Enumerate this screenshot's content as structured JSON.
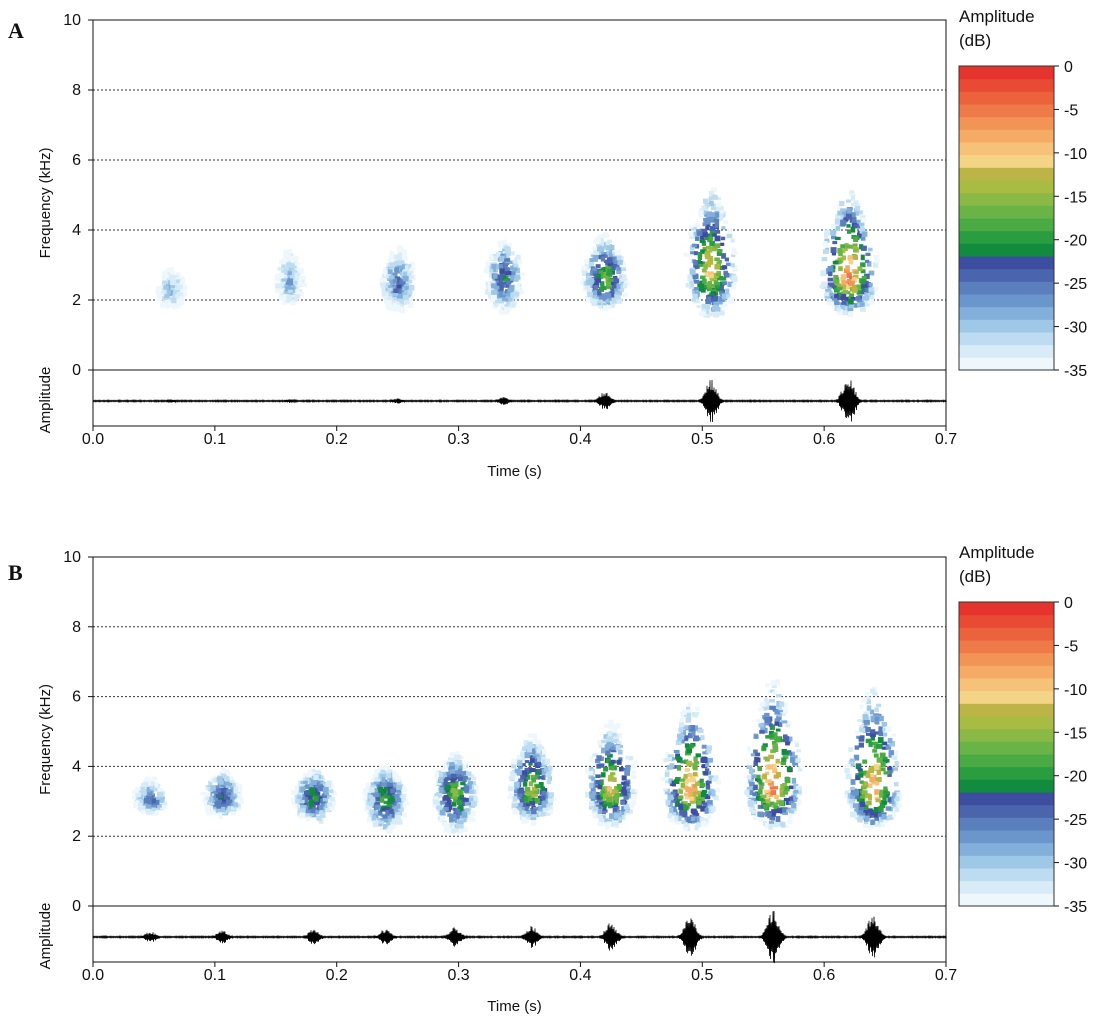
{
  "chart_data": [
    {
      "panel": "A",
      "type": "heatmap",
      "xlabel": "Time (s)",
      "ylabel": "Frequency (kHz)",
      "ylabel_wave": "Amplitude",
      "xlim": [
        0,
        0.7
      ],
      "ylim": [
        0,
        10
      ],
      "x_ticks": [
        "0.0",
        "0.1",
        "0.2",
        "0.3",
        "0.4",
        "0.5",
        "0.6",
        "0.7"
      ],
      "y_ticks": [
        "0",
        "2",
        "4",
        "6",
        "8",
        "10"
      ],
      "gridlines_y": [
        2,
        4,
        6,
        8
      ],
      "colorbar": {
        "title_line1": "Amplitude",
        "title_line2": "(dB)",
        "range": [
          -35,
          0
        ],
        "ticks": [
          "0",
          "-5",
          "-10",
          "-15",
          "-20",
          "-25",
          "-30",
          "-35"
        ]
      },
      "notes": [
        {
          "time": 0.064,
          "freq_center": 2.3,
          "freq_low": 1.7,
          "freq_high": 3.0,
          "peak_db": -26
        },
        {
          "time": 0.161,
          "freq_center": 2.5,
          "freq_low": 1.8,
          "freq_high": 3.6,
          "peak_db": -25
        },
        {
          "time": 0.25,
          "freq_center": 2.4,
          "freq_low": 1.6,
          "freq_high": 3.7,
          "peak_db": -21
        },
        {
          "time": 0.337,
          "freq_center": 2.6,
          "freq_low": 1.5,
          "freq_high": 3.9,
          "peak_db": -18
        },
        {
          "time": 0.42,
          "freq_center": 2.6,
          "freq_low": 1.6,
          "freq_high": 4.0,
          "peak_db": -12
        },
        {
          "time": 0.507,
          "freq_center": 2.8,
          "freq_low": 1.4,
          "freq_high": 5.4,
          "peak_db": -6
        },
        {
          "time": 0.62,
          "freq_center": 2.6,
          "freq_low": 1.5,
          "freq_high": 5.4,
          "peak_db": -1
        }
      ],
      "wave_bursts": [
        {
          "time": 0.064,
          "amplitude": 0.06
        },
        {
          "time": 0.161,
          "amplitude": 0.07
        },
        {
          "time": 0.25,
          "amplitude": 0.1
        },
        {
          "time": 0.337,
          "amplitude": 0.14
        },
        {
          "time": 0.42,
          "amplitude": 0.35
        },
        {
          "time": 0.507,
          "amplitude": 0.8
        },
        {
          "time": 0.62,
          "amplitude": 1.0
        }
      ]
    },
    {
      "panel": "B",
      "type": "heatmap",
      "xlabel": "Time (s)",
      "ylabel": "Frequency (kHz)",
      "ylabel_wave": "Amplitude",
      "xlim": [
        0,
        0.7
      ],
      "ylim": [
        0,
        10
      ],
      "x_ticks": [
        "0.0",
        "0.1",
        "0.2",
        "0.3",
        "0.4",
        "0.5",
        "0.6",
        "0.7"
      ],
      "y_ticks": [
        "0",
        "2",
        "4",
        "6",
        "8",
        "10"
      ],
      "gridlines_y": [
        2,
        4,
        6,
        8
      ],
      "colorbar": {
        "title_line1": "Amplitude",
        "title_line2": "(dB)",
        "range": [
          -35,
          0
        ],
        "ticks": [
          "0",
          "-5",
          "-10",
          "-15",
          "-20",
          "-25",
          "-30",
          "-35"
        ]
      },
      "notes": [
        {
          "time": 0.047,
          "freq_center": 3.0,
          "freq_low": 2.6,
          "freq_high": 3.8,
          "peak_db": -21
        },
        {
          "time": 0.106,
          "freq_center": 3.1,
          "freq_low": 2.5,
          "freq_high": 4.0,
          "peak_db": -17
        },
        {
          "time": 0.181,
          "freq_center": 3.1,
          "freq_low": 2.3,
          "freq_high": 4.0,
          "peak_db": -15
        },
        {
          "time": 0.24,
          "freq_center": 3.1,
          "freq_low": 2.0,
          "freq_high": 4.1,
          "peak_db": -14
        },
        {
          "time": 0.297,
          "freq_center": 3.2,
          "freq_low": 2.0,
          "freq_high": 4.5,
          "peak_db": -12
        },
        {
          "time": 0.36,
          "freq_center": 3.3,
          "freq_low": 2.3,
          "freq_high": 5.1,
          "peak_db": -10
        },
        {
          "time": 0.425,
          "freq_center": 3.3,
          "freq_low": 2.2,
          "freq_high": 5.4,
          "peak_db": -7
        },
        {
          "time": 0.49,
          "freq_center": 3.3,
          "freq_low": 2.1,
          "freq_high": 6.0,
          "peak_db": -3
        },
        {
          "time": 0.558,
          "freq_center": 3.4,
          "freq_low": 2.1,
          "freq_high": 6.6,
          "peak_db": -1
        },
        {
          "time": 0.64,
          "freq_center": 3.3,
          "freq_low": 2.1,
          "freq_high": 6.5,
          "peak_db": -3
        }
      ],
      "wave_bursts": [
        {
          "time": 0.047,
          "amplitude": 0.2
        },
        {
          "time": 0.106,
          "amplitude": 0.24
        },
        {
          "time": 0.181,
          "amplitude": 0.28
        },
        {
          "time": 0.24,
          "amplitude": 0.3
        },
        {
          "time": 0.297,
          "amplitude": 0.36
        },
        {
          "time": 0.36,
          "amplitude": 0.42
        },
        {
          "time": 0.425,
          "amplitude": 0.55
        },
        {
          "time": 0.49,
          "amplitude": 0.8
        },
        {
          "time": 0.558,
          "amplitude": 1.0
        },
        {
          "time": 0.64,
          "amplitude": 0.82
        }
      ]
    }
  ]
}
